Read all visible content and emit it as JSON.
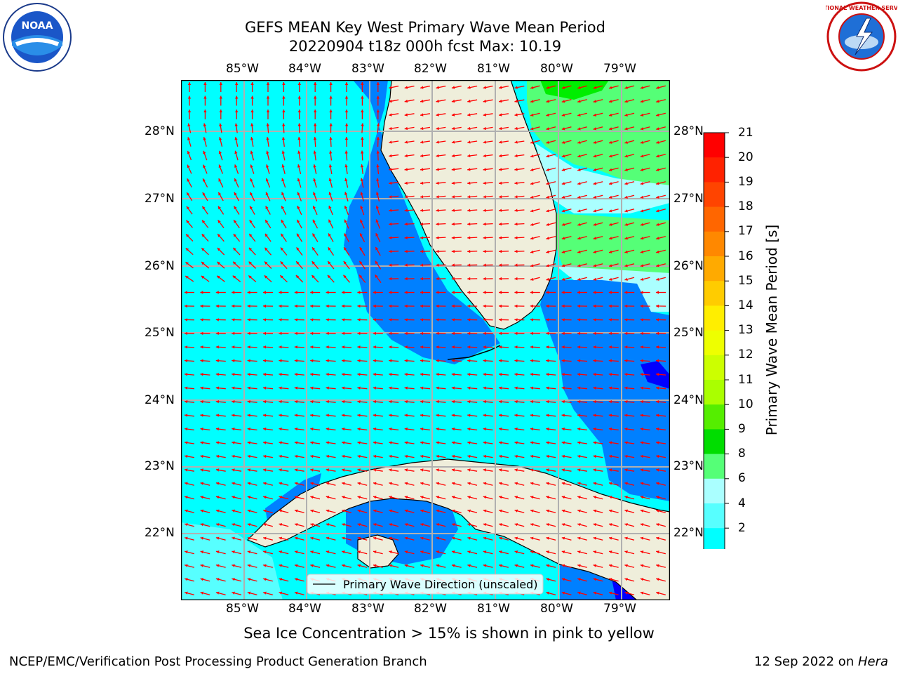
{
  "header": {
    "title_line1": "GEFS MEAN Key West Primary Wave Mean Period",
    "title_line2": "20220904 t18z 000h fcst   Max: 10.19"
  },
  "logos": {
    "noaa_text": "NOAA",
    "nws_text": "NATIONAL WEATHER SERVICE"
  },
  "map": {
    "lon_labels": [
      "85°W",
      "84°W",
      "83°W",
      "82°W",
      "81°W",
      "80°W",
      "79°W"
    ],
    "lat_labels": [
      "28°N",
      "27°N",
      "26°N",
      "25°N",
      "24°N",
      "23°N",
      "22°N"
    ],
    "legend_label": "Primary Wave Direction (unscaled)",
    "colors": {
      "land": "#efeedb",
      "cyan": "#00ffff",
      "blue": "#0080ff",
      "deep_blue": "#0000ff",
      "light_cyan": "#57ffff",
      "pale_cyan": "#aaffff",
      "green": "#55ff77",
      "bright_green": "#00ee00",
      "arrow": "#ff0000"
    }
  },
  "colorbar": {
    "label": "Primary Wave Mean Period [s]",
    "ticks": [
      "21",
      "20",
      "19",
      "18",
      "17",
      "16",
      "15",
      "14",
      "13",
      "12",
      "11",
      "10",
      "9",
      "8",
      "6",
      "4",
      "2"
    ],
    "colors_top_to_bottom": [
      "#ff0000",
      "#ff2200",
      "#ff4400",
      "#ff6600",
      "#ff8800",
      "#ffaa00",
      "#ffcc00",
      "#ffee00",
      "#eeff00",
      "#ccff00",
      "#aaff00",
      "#55ee00",
      "#00dd00",
      "#55ff77",
      "#aaffff",
      "#57ffff",
      "#00ffff",
      "#0080ff"
    ],
    "extend_color": "#0000ff"
  },
  "footer": {
    "sea_ice_note": "Sea Ice Concentration > 15% is shown in pink to yellow",
    "producer": "NCEP/EMC/Verification Post Processing Product Generation Branch",
    "date": "12 Sep 2022 on ",
    "machine": "Hera"
  }
}
